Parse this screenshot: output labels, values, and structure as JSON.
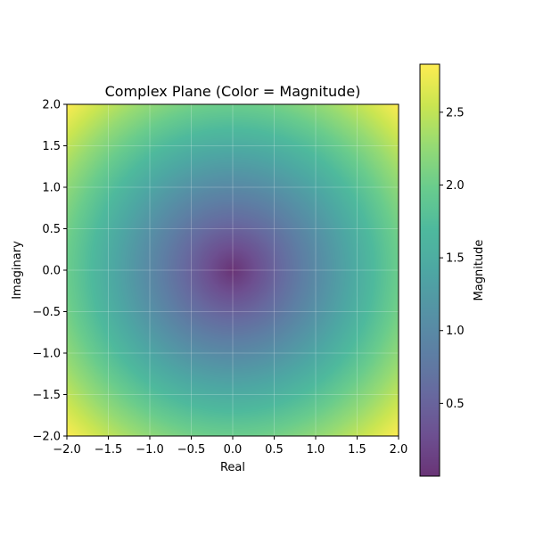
{
  "chart_data": {
    "type": "heatmap",
    "title": "Complex Plane (Color = Magnitude)",
    "xlabel": "Real",
    "ylabel": "Imaginary",
    "xlim": [
      -2.0,
      2.0
    ],
    "ylim": [
      -2.0,
      2.0
    ],
    "x_ticks": [
      "−2.0",
      "−1.5",
      "−1.0",
      "−0.5",
      "0.0",
      "0.5",
      "1.0",
      "1.5",
      "2.0"
    ],
    "y_ticks": [
      "−2.0",
      "−1.5",
      "−1.0",
      "−0.5",
      "0.0",
      "0.5",
      "1.0",
      "1.5",
      "2.0"
    ],
    "x_tick_values": [
      -2.0,
      -1.5,
      -1.0,
      -0.5,
      0.0,
      0.5,
      1.0,
      1.5,
      2.0
    ],
    "y_tick_values": [
      -2.0,
      -1.5,
      -1.0,
      -0.5,
      0.0,
      0.5,
      1.0,
      1.5,
      2.0
    ],
    "value_function": "magnitude |x + iy|",
    "value_range": [
      0.0,
      2.83
    ],
    "grid": true,
    "colormap": "viridis",
    "alpha": 0.8,
    "colorbar": {
      "label": "Magnitude",
      "ticks": [
        "0.5",
        "1.0",
        "1.5",
        "2.0",
        "2.5"
      ],
      "tick_values": [
        0.5,
        1.0,
        1.5,
        2.0,
        2.5
      ]
    }
  }
}
